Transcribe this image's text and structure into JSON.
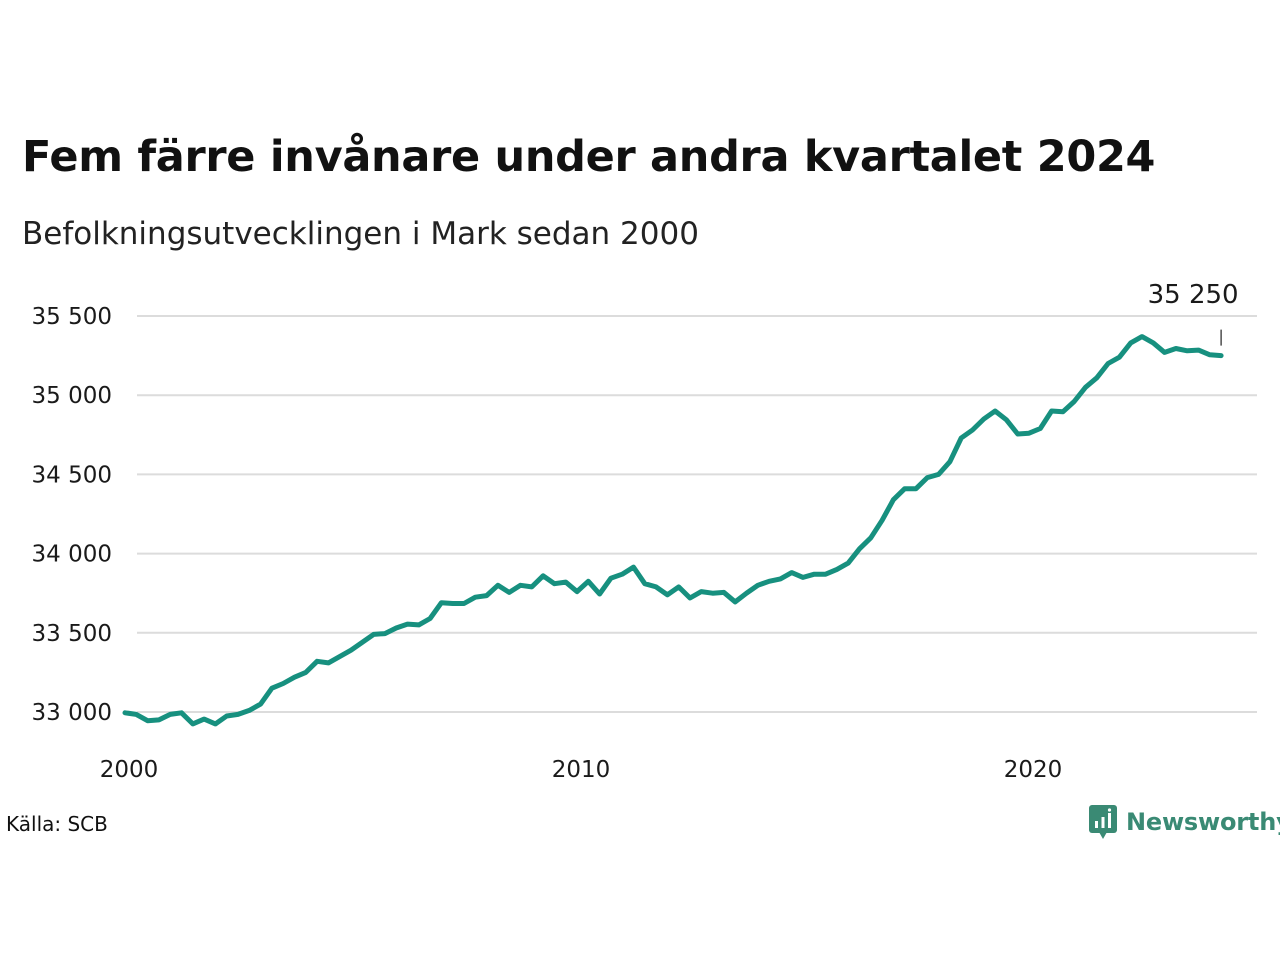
{
  "header": {
    "title": "Fem färre invånare under andra kvartalet 2024",
    "subtitle": "Befolkningsutvecklingen i Mark sedan 2000"
  },
  "footer": {
    "source": "Källa: SCB",
    "brand": "Newsworthy",
    "brand_icon": "newsworthy-logo-icon"
  },
  "colors": {
    "line": "#17907f",
    "grid": "#dcdcdc",
    "brand": "#3a8a74"
  },
  "chart_data": {
    "type": "line",
    "title": "Fem färre invånare under andra kvartalet 2024",
    "subtitle": "Befolkningsutvecklingen i Mark sedan 2000",
    "xlabel": "",
    "ylabel": "",
    "frequency": "quarterly",
    "x_ticks": [
      2000,
      2010,
      2020
    ],
    "x_tick_labels": [
      "2000",
      "2010",
      "2020"
    ],
    "y_ticks": [
      33000,
      33500,
      34000,
      34500,
      35000,
      35500
    ],
    "y_tick_labels": [
      "33 000",
      "33 500",
      "34 000",
      "34 500",
      "35 000",
      "35 500"
    ],
    "ylim": [
      32850,
      35600
    ],
    "xlim": [
      2000,
      2025
    ],
    "grid": true,
    "legend": "none",
    "end_label": "35 250",
    "series": [
      {
        "x": [
          2000.0,
          2000.25,
          2000.5,
          2000.75,
          2001.0,
          2001.25,
          2001.5,
          2001.75,
          2002.0,
          2002.25,
          2002.5,
          2002.75,
          2003.0,
          2003.25,
          2003.5,
          2003.75,
          2004.0,
          2004.25,
          2004.5,
          2004.75,
          2005.0,
          2005.25,
          2005.5,
          2005.75,
          2006.0,
          2006.25,
          2006.5,
          2006.75,
          2007.0,
          2007.25,
          2007.5,
          2007.75,
          2008.0,
          2008.25,
          2008.5,
          2008.75,
          2009.0,
          2009.25,
          2009.5,
          2009.75,
          2010.0,
          2010.25,
          2010.5,
          2010.75,
          2011.0,
          2011.25,
          2011.5,
          2011.75,
          2012.0,
          2012.25,
          2012.5,
          2012.75,
          2013.0,
          2013.25,
          2013.5,
          2013.75,
          2014.0,
          2014.25,
          2014.5,
          2014.75,
          2015.0,
          2015.25,
          2015.5,
          2015.75,
          2016.0,
          2016.25,
          2016.5,
          2016.75,
          2017.0,
          2017.25,
          2017.5,
          2017.75,
          2018.0,
          2018.25,
          2018.5,
          2018.75,
          2019.0,
          2019.25,
          2019.5,
          2019.75,
          2020.0,
          2020.25,
          2020.5,
          2020.75,
          2021.0,
          2021.25,
          2021.5,
          2021.75,
          2022.0,
          2022.25,
          2022.5,
          2022.75,
          2023.0,
          2023.25,
          2023.5,
          2023.75,
          2024.0,
          2024.25
        ],
        "values": [
          32995,
          32985,
          32945,
          32950,
          32985,
          32995,
          32925,
          32955,
          32925,
          32975,
          32985,
          33010,
          33050,
          33150,
          33180,
          33220,
          33250,
          33320,
          33310,
          33350,
          33390,
          33440,
          33490,
          33495,
          33530,
          33555,
          33550,
          33590,
          33690,
          33685,
          33685,
          33725,
          33735,
          33800,
          33755,
          33800,
          33790,
          33860,
          33810,
          33820,
          33760,
          33825,
          33745,
          33845,
          33870,
          33915,
          33810,
          33790,
          33740,
          33790,
          33720,
          33760,
          33750,
          33755,
          33695,
          33750,
          33800,
          33825,
          33840,
          33880,
          33850,
          33870,
          33870,
          33900,
          33940,
          34030,
          34100,
          34210,
          34340,
          34410,
          34410,
          34480,
          34500,
          34580,
          34730,
          34780,
          34850,
          34900,
          34845,
          34755,
          34760,
          34790,
          34900,
          34895,
          34960,
          35050,
          35110,
          35200,
          35240,
          35330,
          35370,
          35330,
          35270,
          35295,
          35280,
          35285,
          35255,
          35250
        ]
      }
    ]
  }
}
